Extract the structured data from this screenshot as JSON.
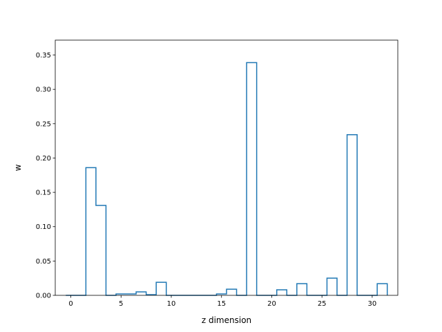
{
  "chart_data": {
    "type": "bar",
    "style": "step-histogram",
    "title": "",
    "xlabel": "z dimension",
    "ylabel": "w",
    "xlim": [
      -1.55,
      32.55
    ],
    "ylim": [
      0,
      0.3717
    ],
    "xticks": [
      0,
      5,
      10,
      15,
      20,
      25,
      30
    ],
    "xtick_labels": [
      "0",
      "5",
      "10",
      "15",
      "20",
      "25",
      "30"
    ],
    "yticks": [
      0,
      0.05,
      0.1,
      0.15,
      0.2,
      0.25,
      0.3,
      0.35
    ],
    "ytick_labels": [
      "0.00",
      "0.05",
      "0.10",
      "0.15",
      "0.20",
      "0.25",
      "0.30",
      "0.35"
    ],
    "grid": false,
    "legend": "none",
    "series": [
      {
        "x": [
          0,
          1,
          2,
          3,
          4,
          5,
          6,
          7,
          8,
          9,
          10,
          11,
          12,
          13,
          14,
          15,
          16,
          17,
          18,
          19,
          20,
          21,
          22,
          23,
          24,
          25,
          26,
          27,
          28,
          29,
          30,
          31
        ],
        "values": [
          0.0,
          0.0,
          0.186,
          0.131,
          0.0,
          0.002,
          0.002,
          0.005,
          0.001,
          0.019,
          0.0,
          0.0,
          0.0,
          0.0,
          0.0,
          0.002,
          0.009,
          0.0,
          0.339,
          0.0,
          0.0,
          0.008,
          0.0,
          0.017,
          0.0,
          0.0,
          0.025,
          0.0,
          0.234,
          0.0,
          0.0,
          0.017
        ],
        "color": "#1f77b4"
      }
    ]
  }
}
